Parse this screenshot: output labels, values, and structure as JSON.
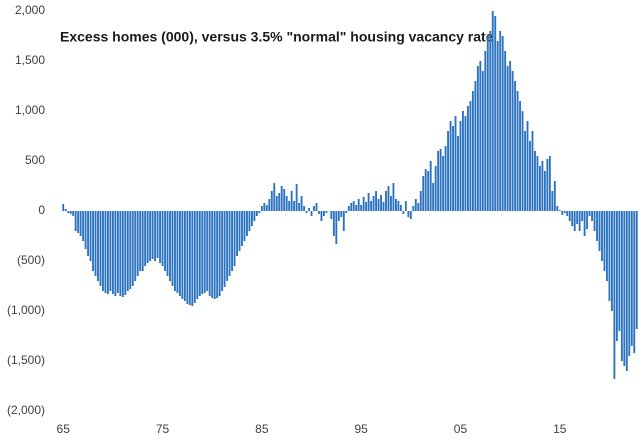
{
  "chart_data": {
    "type": "bar",
    "title": "Excess homes (000), versus 3.5% \"normal\" housing vacancy rate",
    "color": "#2a72c0",
    "ylim": [
      -2000,
      2000
    ],
    "yticks": [
      {
        "value": -2000,
        "label": "(2,000)"
      },
      {
        "value": -1500,
        "label": "(1,500)"
      },
      {
        "value": -1000,
        "label": "(1,000)"
      },
      {
        "value": -500,
        "label": "(500)"
      },
      0,
      500,
      {
        "value": 1000,
        "label": "1,000"
      },
      {
        "value": 1500,
        "label": "1,500"
      },
      {
        "value": 2000,
        "label": "2,000"
      }
    ],
    "categories": [
      "65",
      null,
      null,
      null,
      null,
      null,
      null,
      null,
      null,
      null,
      null,
      null,
      null,
      null,
      null,
      null,
      null,
      null,
      null,
      null,
      null,
      null,
      null,
      null,
      null,
      null,
      null,
      null,
      null,
      null,
      null,
      null,
      null,
      null,
      null,
      null,
      null,
      null,
      null,
      null,
      "75",
      null,
      null,
      null,
      null,
      null,
      null,
      null,
      null,
      null,
      null,
      null,
      null,
      null,
      null,
      null,
      null,
      null,
      null,
      null,
      null,
      null,
      null,
      null,
      null,
      null,
      null,
      null,
      null,
      null,
      null,
      null,
      null,
      null,
      null,
      null,
      null,
      null,
      null,
      null,
      "85",
      null,
      null,
      null,
      null,
      null,
      null,
      null,
      null,
      null,
      null,
      null,
      null,
      null,
      null,
      null,
      null,
      null,
      null,
      null,
      null,
      null,
      null,
      null,
      null,
      null,
      null,
      null,
      null,
      null,
      null,
      null,
      null,
      null,
      null,
      null,
      null,
      null,
      null,
      null,
      "95",
      null,
      null,
      null,
      null,
      null,
      null,
      null,
      null,
      null,
      null,
      null,
      null,
      null,
      null,
      null,
      null,
      null,
      null,
      null,
      null,
      null,
      null,
      null,
      null,
      null,
      null,
      null,
      null,
      null,
      null,
      null,
      null,
      null,
      null,
      null,
      null,
      null,
      null,
      null,
      "05",
      null,
      null,
      null,
      null,
      null,
      null,
      null,
      null,
      null,
      null,
      null,
      null,
      null,
      null,
      null,
      null,
      null,
      null,
      null,
      null,
      null,
      null,
      null,
      null,
      null,
      null,
      null,
      null,
      null,
      null,
      null,
      null,
      null,
      null,
      null,
      null,
      null,
      null,
      null,
      "15",
      null,
      null,
      null,
      null,
      null,
      null,
      null,
      null,
      null,
      null,
      null,
      null,
      null,
      null,
      null,
      null,
      null,
      null,
      null,
      null,
      null,
      null,
      null,
      null,
      null,
      null,
      null,
      null,
      null,
      null,
      null
    ],
    "values": [
      70,
      20,
      -20,
      -30,
      -50,
      -200,
      -220,
      -250,
      -300,
      -380,
      -450,
      -500,
      -600,
      -650,
      -700,
      -750,
      -800,
      -820,
      -830,
      -800,
      -830,
      -850,
      -820,
      -850,
      -860,
      -840,
      -800,
      -780,
      -750,
      -700,
      -650,
      -600,
      -600,
      -550,
      -520,
      -500,
      -480,
      -500,
      -470,
      -520,
      -550,
      -600,
      -650,
      -700,
      -750,
      -800,
      -820,
      -850,
      -880,
      -900,
      -930,
      -940,
      -950,
      -920,
      -880,
      -850,
      -830,
      -820,
      -800,
      -850,
      -870,
      -880,
      -870,
      -850,
      -800,
      -760,
      -700,
      -650,
      -600,
      -550,
      -450,
      -400,
      -350,
      -300,
      -250,
      -200,
      -150,
      -100,
      -50,
      -20,
      50,
      80,
      60,
      120,
      200,
      280,
      150,
      180,
      250,
      220,
      150,
      100,
      200,
      100,
      270,
      80,
      150,
      50,
      -20,
      30,
      -50,
      50,
      80,
      -30,
      -100,
      -50,
      -20,
      0,
      -80,
      -250,
      -330,
      -100,
      -60,
      -200,
      -20,
      50,
      80,
      100,
      60,
      120,
      60,
      140,
      90,
      180,
      100,
      150,
      200,
      120,
      160,
      90,
      200,
      250,
      150,
      280,
      120,
      100,
      60,
      -30,
      100,
      -60,
      -80,
      50,
      120,
      80,
      200,
      350,
      420,
      400,
      500,
      280,
      450,
      600,
      620,
      550,
      650,
      800,
      900,
      850,
      950,
      750,
      900,
      1000,
      950,
      1050,
      1100,
      1200,
      1300,
      1450,
      1500,
      1400,
      1600,
      1750,
      1800,
      2000,
      1950,
      1700,
      1800,
      1750,
      1600,
      1450,
      1500,
      1400,
      1300,
      1200,
      1100,
      1000,
      800,
      900,
      700,
      800,
      600,
      550,
      450,
      500,
      400,
      520,
      550,
      200,
      300,
      50,
      10,
      -40,
      -20,
      -50,
      -100,
      -150,
      -200,
      -130,
      -200,
      -100,
      -250,
      -180,
      -50,
      -100,
      -200,
      -300,
      -400,
      -500,
      -600,
      -700,
      -900,
      -1000,
      -1680,
      -1300,
      -1200,
      -1500,
      -1550,
      -1600,
      -1450,
      -1350,
      -1420,
      -1180
    ]
  }
}
